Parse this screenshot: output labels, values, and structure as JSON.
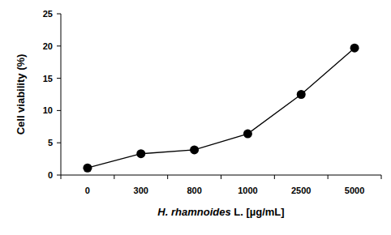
{
  "chart_data": {
    "type": "line",
    "categories": [
      "0",
      "300",
      "800",
      "1000",
      "2500",
      "5000"
    ],
    "values": [
      1.1,
      3.3,
      3.9,
      6.4,
      12.5,
      19.7
    ],
    "color": "#000000",
    "marker": "circle",
    "line_style": "solid",
    "ylim": [
      0,
      25
    ],
    "yticks": [
      0,
      5,
      10,
      15,
      20,
      25
    ],
    "x_label": "H. rhamnoides L. [µg/mL]",
    "y_label": "Cell viability (%)",
    "grid": false
  }
}
